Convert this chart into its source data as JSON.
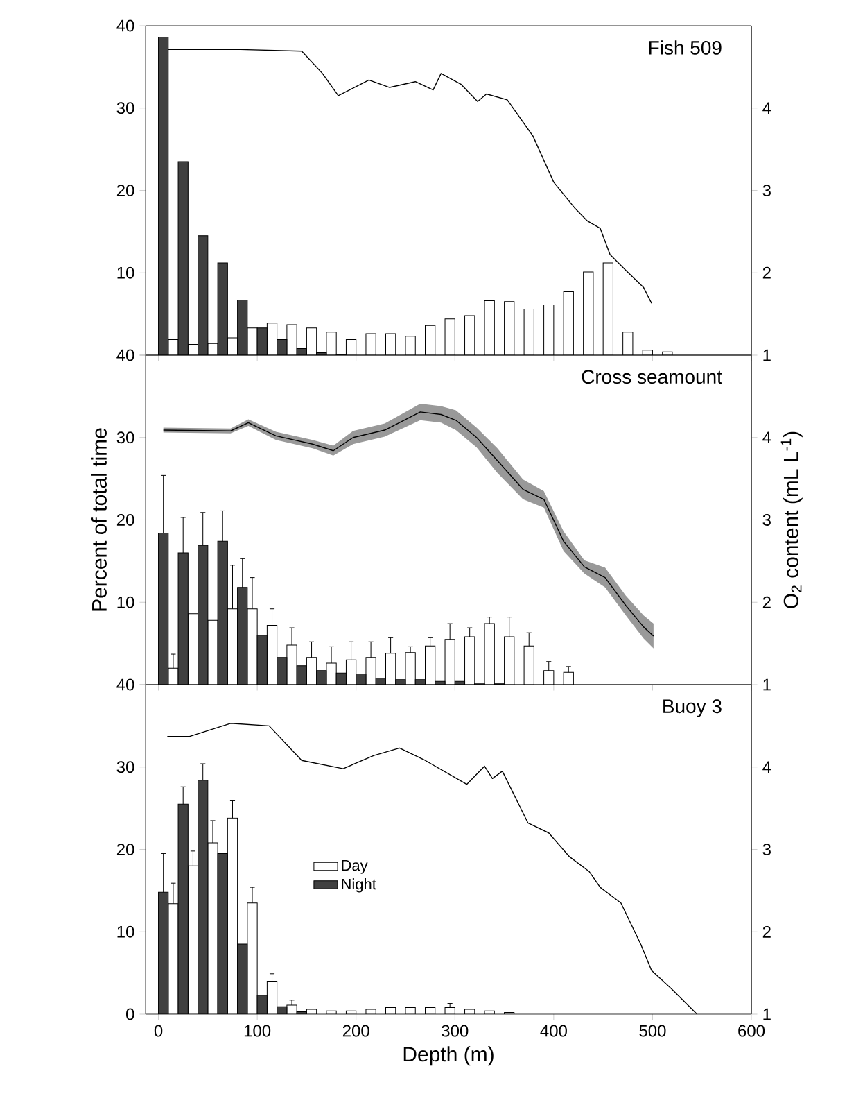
{
  "chart_data": [
    {
      "type": "bar",
      "title": "Fish 509",
      "xlim": [
        -13,
        600
      ],
      "xticks": [
        0,
        100,
        200,
        300,
        400,
        500,
        600
      ],
      "ylim": [
        0,
        40
      ],
      "yticks": [
        {
          "value": 0,
          "label": null
        },
        10,
        20,
        30,
        40
      ],
      "y2lim": [
        1,
        5
      ],
      "y2ticks": [
        1,
        2,
        3,
        4
      ],
      "tick_labels": "y",
      "series": [
        {
          "color": "#ffffff",
          "x": [
            15,
            35,
            55,
            75,
            95,
            115,
            135,
            155,
            175,
            195,
            215,
            235,
            255,
            275,
            295,
            315,
            335,
            355,
            375,
            395,
            415,
            435,
            455,
            475,
            495,
            515
          ],
          "values": [
            1.9,
            1.3,
            1.4,
            2.1,
            3.3,
            3.9,
            3.7,
            3.3,
            2.8,
            1.9,
            2.6,
            2.6,
            2.3,
            3.6,
            4.4,
            4.8,
            6.6,
            6.5,
            5.6,
            6.1,
            7.7,
            10.1,
            11.2,
            2.8,
            0.6,
            0.4
          ]
        },
        {
          "color": "#404040",
          "x": [
            5,
            25,
            45,
            65,
            85,
            105,
            125,
            145,
            165,
            185
          ],
          "values": [
            38.6,
            23.5,
            14.5,
            11.2,
            6.7,
            3.3,
            1.9,
            0.8,
            0.3,
            0.1
          ]
        },
        {
          "type": "line",
          "axis": "y2",
          "color": "#000000",
          "x": [
            10,
            83,
            145,
            166,
            182,
            213,
            234,
            260,
            278,
            286,
            306,
            323,
            332,
            353,
            379,
            400,
            421,
            434,
            447,
            457,
            473,
            491,
            499
          ],
          "values": [
            4.71,
            4.71,
            4.69,
            4.42,
            4.15,
            4.34,
            4.25,
            4.32,
            4.22,
            4.42,
            4.29,
            4.08,
            4.17,
            4.1,
            3.66,
            3.1,
            2.79,
            2.63,
            2.54,
            2.22,
            2.03,
            1.82,
            1.63
          ]
        }
      ]
    },
    {
      "type": "bar",
      "title": "Cross seamount",
      "ylabel": "Percent of total time",
      "y2label": "O$_{2}$ content (mL L$^{-1}$)",
      "xlim": [
        -13,
        600
      ],
      "xticks": [
        0,
        100,
        200,
        300,
        400,
        500,
        600
      ],
      "ylim": [
        0,
        40
      ],
      "yticks": [
        {
          "value": 0,
          "label": null
        },
        10,
        20,
        30,
        40
      ],
      "y2lim": [
        1,
        5
      ],
      "y2ticks": [
        1,
        2,
        3,
        4
      ],
      "tick_labels": "y",
      "series": [
        {
          "color": "#ffffff",
          "x": [
            15,
            35,
            55,
            75,
            95,
            115,
            135,
            155,
            175,
            195,
            215,
            235,
            255,
            275,
            295,
            315,
            335,
            355,
            375,
            395,
            415
          ],
          "values": [
            2.0,
            8.6,
            7.8,
            9.2,
            9.2,
            7.2,
            4.8,
            3.3,
            2.6,
            3.0,
            3.3,
            3.8,
            3.9,
            4.7,
            5.5,
            5.8,
            7.4,
            5.8,
            4.7,
            1.7,
            1.5
          ],
          "errors": [
            [
              2.0,
              3.7
            ],
            null,
            null,
            [
              9.2,
              14.5
            ],
            [
              9.2,
              13.0
            ],
            [
              7.2,
              9.2
            ],
            [
              4.8,
              6.9
            ],
            [
              3.3,
              5.2
            ],
            [
              2.6,
              4.6
            ],
            [
              3.0,
              5.2
            ],
            [
              3.3,
              5.2
            ],
            [
              3.8,
              5.7
            ],
            [
              3.9,
              4.6
            ],
            [
              4.7,
              5.7
            ],
            [
              5.5,
              7.4
            ],
            [
              5.8,
              6.9
            ],
            [
              7.4,
              8.2
            ],
            [
              5.8,
              8.2
            ],
            [
              4.7,
              6.3
            ],
            [
              1.7,
              2.8
            ],
            [
              1.5,
              2.2
            ]
          ]
        },
        {
          "color": "#404040",
          "x": [
            5,
            25,
            45,
            65,
            85,
            105,
            125,
            145,
            165,
            185,
            205,
            225,
            245,
            265,
            285,
            305,
            325,
            345
          ],
          "values": [
            18.4,
            16.0,
            16.9,
            17.4,
            11.8,
            6.0,
            3.3,
            2.3,
            1.7,
            1.4,
            1.3,
            0.8,
            0.6,
            0.6,
            0.4,
            0.4,
            0.2,
            0.1
          ],
          "errors": [
            [
              18.4,
              25.4
            ],
            [
              16.0,
              20.3
            ],
            [
              16.9,
              20.9
            ],
            [
              17.4,
              21.1
            ],
            [
              11.8,
              15.3
            ],
            null,
            null,
            null,
            null,
            null,
            null,
            null,
            null,
            null,
            null,
            null,
            null,
            null
          ]
        },
        {
          "type": "line",
          "axis": "y2",
          "color": "#000000",
          "x": [
            5,
            73,
            91,
            119,
            156,
            177,
            197,
            229,
            265,
            286,
            301,
            322,
            343,
            369,
            390,
            410,
            431,
            452,
            473,
            491,
            501
          ],
          "values": [
            4.09,
            4.08,
            4.18,
            4.02,
            3.92,
            3.84,
            4.0,
            4.09,
            4.31,
            4.28,
            4.21,
            4.0,
            3.72,
            3.37,
            3.25,
            2.74,
            2.43,
            2.3,
            1.96,
            1.7,
            1.59
          ],
          "lower": [
            4.06,
            4.05,
            4.14,
            3.97,
            3.87,
            3.78,
            3.92,
            4.01,
            4.21,
            4.18,
            4.09,
            3.88,
            3.57,
            3.25,
            3.15,
            2.62,
            2.35,
            2.18,
            1.84,
            1.56,
            1.44
          ],
          "upper": [
            4.12,
            4.11,
            4.22,
            4.07,
            3.97,
            3.9,
            4.08,
            4.17,
            4.41,
            4.38,
            4.33,
            4.12,
            3.87,
            3.49,
            3.35,
            2.86,
            2.51,
            2.42,
            2.08,
            1.84,
            1.74
          ]
        }
      ]
    },
    {
      "type": "bar",
      "title": "Buoy 3",
      "xlabel": "Depth (m)",
      "xlim": [
        -13,
        600
      ],
      "xticks": [
        0,
        100,
        200,
        300,
        400,
        500,
        600
      ],
      "ylim": [
        0,
        40
      ],
      "yticks": [
        0,
        10,
        20,
        30,
        40
      ],
      "y2lim": [
        1,
        5
      ],
      "y2ticks": [
        1,
        2,
        3,
        4
      ],
      "legend": "left",
      "series": [
        {
          "name": "Day",
          "color": "#ffffff",
          "x": [
            15,
            35,
            55,
            75,
            95,
            115,
            135,
            155,
            175,
            195,
            215,
            235,
            255,
            275,
            295,
            315,
            335,
            355
          ],
          "values": [
            13.4,
            18.0,
            20.8,
            23.8,
            13.5,
            4.0,
            1.1,
            0.6,
            0.4,
            0.4,
            0.6,
            0.8,
            0.8,
            0.8,
            0.8,
            0.6,
            0.4,
            0.2
          ],
          "errors": [
            [
              13.4,
              15.9
            ],
            [
              18.0,
              19.8
            ],
            [
              20.8,
              23.5
            ],
            [
              23.8,
              25.9
            ],
            [
              13.5,
              15.4
            ],
            [
              4.0,
              4.9
            ],
            [
              1.1,
              1.7
            ],
            null,
            null,
            null,
            null,
            null,
            null,
            null,
            [
              0.8,
              1.3
            ],
            null,
            null,
            null
          ]
        },
        {
          "name": "Night",
          "color": "#404040",
          "x": [
            5,
            25,
            45,
            65,
            85,
            105,
            125,
            145
          ],
          "values": [
            14.8,
            25.5,
            28.4,
            19.5,
            8.5,
            2.3,
            0.9,
            0.3
          ],
          "errors": [
            [
              14.8,
              19.5
            ],
            [
              25.5,
              27.6
            ],
            [
              28.4,
              30.4
            ],
            null,
            null,
            null,
            null,
            null
          ]
        },
        {
          "type": "line",
          "axis": "y2",
          "color": "#000000",
          "x": [
            9,
            31,
            73,
            112,
            145,
            187,
            218,
            244,
            270,
            312,
            330,
            338,
            348,
            374,
            395,
            416,
            436,
            447,
            468,
            488,
            499,
            519,
            545
          ],
          "values": [
            4.37,
            4.37,
            4.53,
            4.5,
            4.08,
            3.98,
            4.14,
            4.23,
            4.08,
            3.79,
            4.01,
            3.86,
            3.95,
            3.32,
            3.2,
            2.91,
            2.73,
            2.54,
            2.35,
            1.85,
            1.53,
            1.31,
            1.0
          ]
        }
      ]
    }
  ]
}
